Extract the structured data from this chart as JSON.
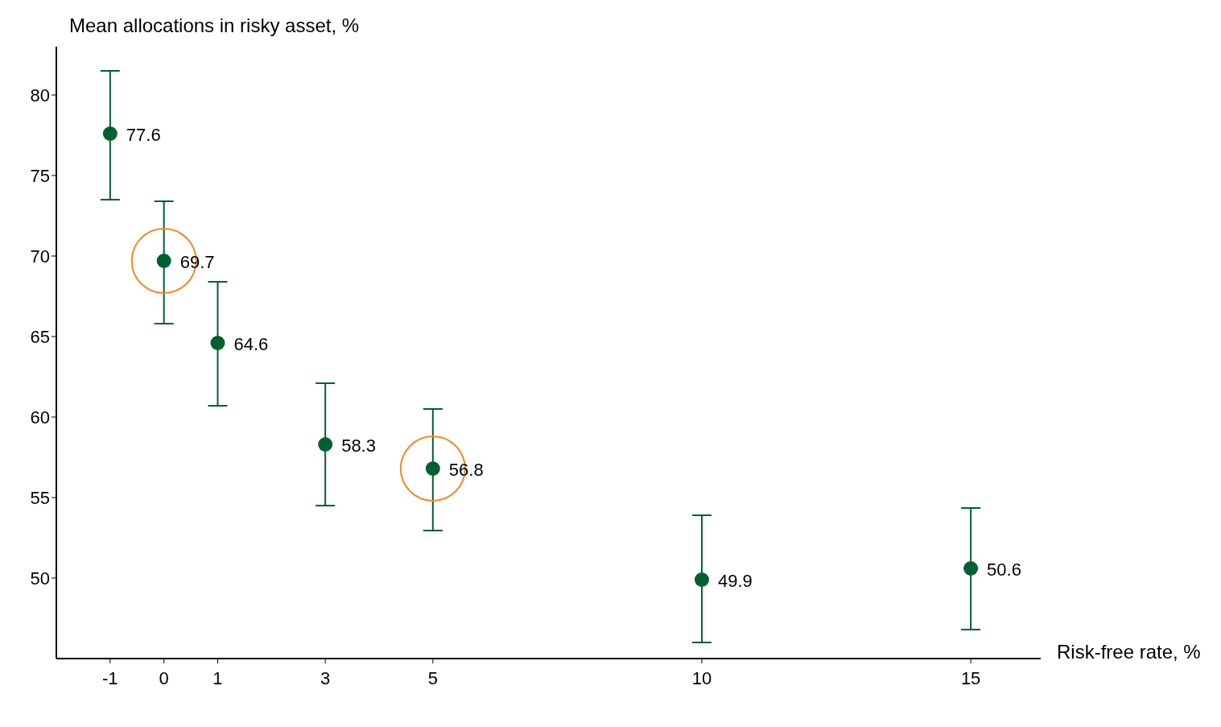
{
  "chart_data": {
    "type": "scatter",
    "xlabel": "Risk-free rate, %",
    "ylabel": "Mean allocations in risky asset, %",
    "x": [
      -1,
      0,
      1,
      3,
      5,
      10,
      15
    ],
    "series": [
      {
        "color": "#006030",
        "values": [
          77.6,
          69.7,
          64.6,
          58.3,
          56.8,
          49.9,
          50.6
        ],
        "errors": [
          [
            73.5,
            81.5
          ],
          [
            65.8,
            73.4
          ],
          [
            60.7,
            68.4
          ],
          [
            54.5,
            62.1
          ],
          [
            52.95,
            60.5
          ],
          [
            46.0,
            53.9
          ],
          [
            46.8,
            54.35
          ]
        ]
      },
      {
        "color": "#f08a24",
        "x": [
          0,
          5
        ],
        "values": [
          69.7,
          56.8
        ],
        "value_labels": [
          null,
          null
        ]
      }
    ],
    "data_labels": true,
    "marker": "circle",
    "xlim": [
      -2,
      16.3
    ],
    "xticks": [
      -1,
      0,
      1,
      3,
      5,
      10,
      15
    ],
    "ylim": [
      45,
      83
    ],
    "yticks": [
      50,
      55,
      60,
      65,
      70,
      75,
      80
    ]
  }
}
